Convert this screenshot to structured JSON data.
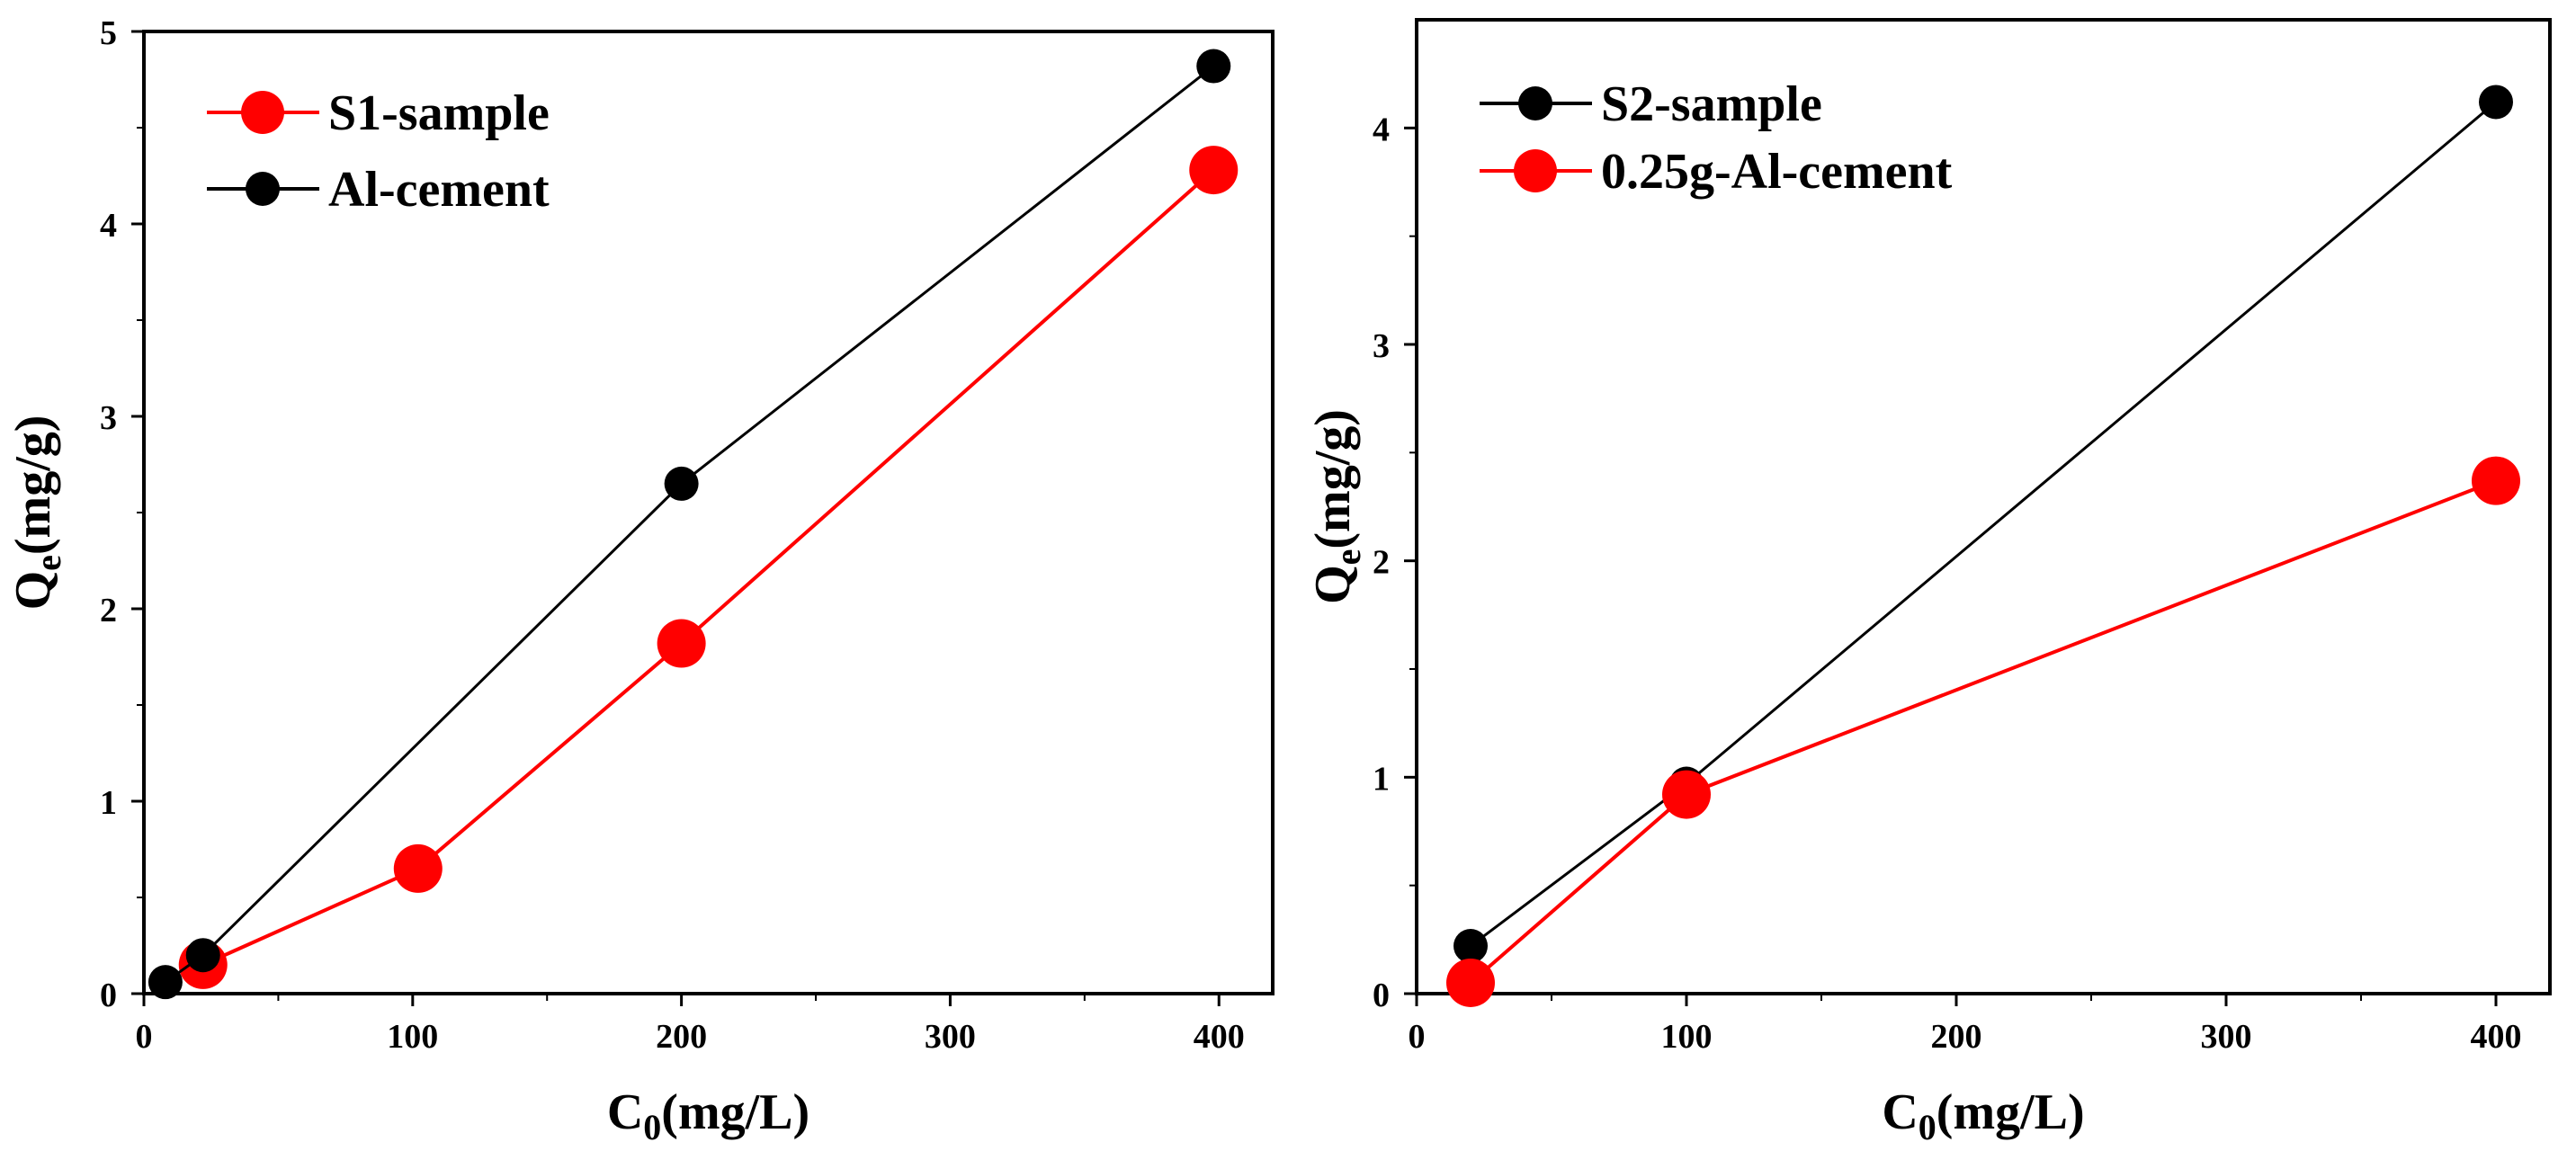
{
  "chart_data": [
    {
      "type": "line",
      "title": "",
      "xlabel": "C",
      "xlabel_sub": "0",
      "xlabel_unit": "(mg/L)",
      "ylabel": "Q",
      "ylabel_sub": "e",
      "ylabel_unit": "(mg/g)",
      "xlim": [
        0,
        420
      ],
      "ylim": [
        0,
        5
      ],
      "x_ticks": [
        "0",
        "100",
        "200",
        "300",
        "400"
      ],
      "y_ticks": [
        "0",
        "1",
        "2",
        "3",
        "4",
        "5"
      ],
      "legend_position": "top-left",
      "series": [
        {
          "name": "S1-sample",
          "color": "#ff0000",
          "marker": "large",
          "x": [
            22,
            102,
            200,
            398
          ],
          "values": [
            0.15,
            0.65,
            1.82,
            4.28
          ]
        },
        {
          "name": "Al-cement",
          "color": "#000000",
          "marker": "small",
          "x": [
            8,
            22,
            200,
            398
          ],
          "values": [
            0.06,
            0.2,
            2.65,
            4.82
          ]
        }
      ]
    },
    {
      "type": "line",
      "title": "",
      "xlabel": "C",
      "xlabel_sub": "0",
      "xlabel_unit": "(mg/L)",
      "ylabel": "Q",
      "ylabel_sub": "e",
      "ylabel_unit": "(mg/g)",
      "xlim": [
        0,
        420
      ],
      "ylim": [
        0,
        4.5
      ],
      "x_ticks": [
        "0",
        "100",
        "200",
        "300",
        "400"
      ],
      "y_ticks": [
        "0",
        "1",
        "2",
        "3",
        "4"
      ],
      "legend_position": "top-left",
      "series": [
        {
          "name": "S2-sample",
          "color": "#000000",
          "marker": "small",
          "x": [
            20,
            100,
            400
          ],
          "values": [
            0.22,
            0.97,
            4.12
          ]
        },
        {
          "name": "0.25g-Al-cement",
          "color": "#ff0000",
          "marker": "large",
          "x": [
            20,
            100,
            400
          ],
          "values": [
            0.05,
            0.92,
            2.37
          ]
        }
      ]
    }
  ]
}
